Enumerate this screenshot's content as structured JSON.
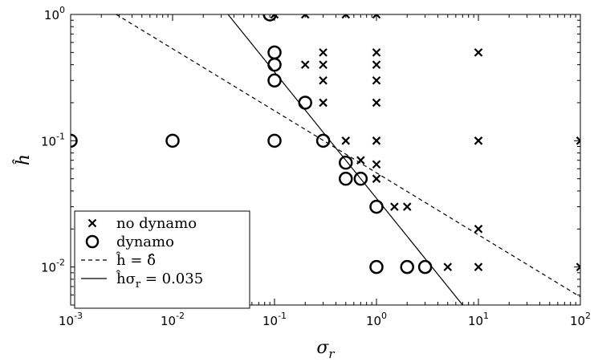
{
  "chart_data": {
    "type": "scatter",
    "xlabel_base": "σ",
    "xlabel_sub": "r",
    "ylabel": "ĥ",
    "xscale": "log",
    "yscale": "log",
    "xlim": [
      0.001,
      100
    ],
    "ylim": [
      0.005,
      1
    ],
    "grid": false,
    "legend_position": "bottom-left",
    "x_ticks": [
      {
        "value": 0.001,
        "base": "10",
        "exp": "-3"
      },
      {
        "value": 0.01,
        "base": "10",
        "exp": "-2"
      },
      {
        "value": 0.1,
        "base": "10",
        "exp": "-1"
      },
      {
        "value": 1,
        "base": "10",
        "exp": "0"
      },
      {
        "value": 10,
        "base": "10",
        "exp": "1"
      },
      {
        "value": 100,
        "base": "10",
        "exp": "2"
      }
    ],
    "y_ticks": [
      {
        "value": 0.01,
        "base": "10",
        "exp": "-2"
      },
      {
        "value": 0.1,
        "base": "10",
        "exp": "-1"
      },
      {
        "value": 1,
        "base": "10",
        "exp": "0"
      }
    ],
    "series": [
      {
        "name": "no dynamo",
        "marker": "x",
        "points": [
          [
            0.1,
            1
          ],
          [
            0.2,
            1
          ],
          [
            0.5,
            1
          ],
          [
            1,
            1
          ],
          [
            0.2,
            0.4
          ],
          [
            0.3,
            0.5
          ],
          [
            0.3,
            0.4
          ],
          [
            0.3,
            0.3
          ],
          [
            0.3,
            0.2
          ],
          [
            1,
            0.5
          ],
          [
            1,
            0.4
          ],
          [
            1,
            0.3
          ],
          [
            1,
            0.2
          ],
          [
            10,
            0.5
          ],
          [
            0.5,
            0.1
          ],
          [
            1,
            0.1
          ],
          [
            10,
            0.1
          ],
          [
            100,
            0.1
          ],
          [
            0.7,
            0.07
          ],
          [
            1,
            0.065
          ],
          [
            1,
            0.05
          ],
          [
            1.5,
            0.03
          ],
          [
            2,
            0.03
          ],
          [
            10,
            0.02
          ],
          [
            5,
            0.01
          ],
          [
            10,
            0.01
          ],
          [
            100,
            0.01
          ]
        ]
      },
      {
        "name": "dynamo",
        "marker": "o",
        "points": [
          [
            0.09,
            1
          ],
          [
            0.1,
            0.5
          ],
          [
            0.1,
            0.4
          ],
          [
            0.1,
            0.3
          ],
          [
            0.2,
            0.2
          ],
          [
            0.001,
            0.1
          ],
          [
            0.01,
            0.1
          ],
          [
            0.1,
            0.1
          ],
          [
            0.3,
            0.1
          ],
          [
            0.5,
            0.067
          ],
          [
            0.5,
            0.05
          ],
          [
            0.7,
            0.05
          ],
          [
            1,
            0.03
          ],
          [
            1,
            0.01
          ],
          [
            2,
            0.01
          ],
          [
            3,
            0.01
          ]
        ]
      },
      {
        "name": "ĥ = δ̂",
        "style": "dashed",
        "points": [
          [
            0.0028,
            1
          ],
          [
            100,
            0.0058
          ]
        ]
      },
      {
        "name": "ĥσr = 0.035",
        "style": "solid",
        "points": [
          [
            0.035,
            1
          ],
          [
            7,
            0.005
          ]
        ]
      }
    ],
    "legend": [
      {
        "symbol": "x",
        "label": "no dynamo"
      },
      {
        "symbol": "o",
        "label": "dynamo"
      },
      {
        "symbol": "dashed",
        "label": "ĥ = δ̂"
      },
      {
        "symbol": "solid",
        "label": "ĥσ",
        "label_sub": "r",
        "label_tail": " = 0.035"
      }
    ]
  }
}
